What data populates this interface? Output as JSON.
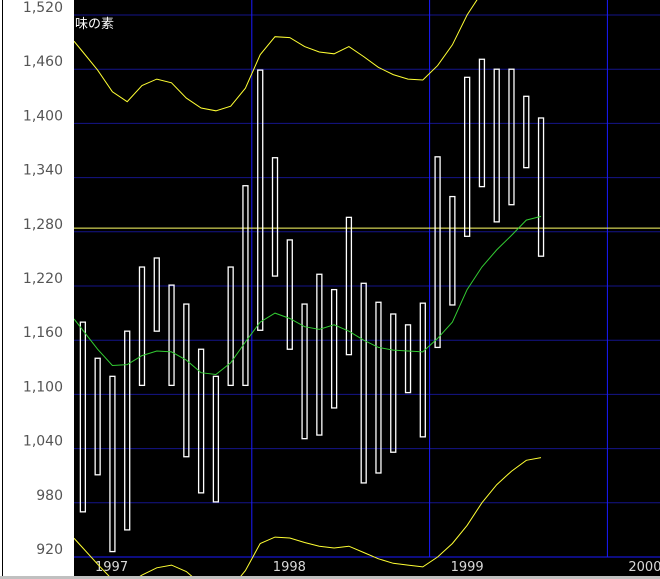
{
  "chart_data": {
    "type": "bar",
    "title": "味の素",
    "ylim": [
      900,
      1534
    ],
    "yticks": [
      "1,520",
      "1,460",
      "1,400",
      "1,340",
      "1,280",
      "1,220",
      "1,160",
      "1,100",
      "1,040",
      "980",
      "920"
    ],
    "ytick_values": [
      1520,
      1460,
      1400,
      1340,
      1280,
      1220,
      1160,
      1100,
      1040,
      980,
      920
    ],
    "xticks": [
      "1997",
      "1998",
      "1999",
      "2000"
    ],
    "grid": true,
    "reference_line": 1284,
    "colors": {
      "background": "#000000",
      "bars": "#ffffff",
      "moving_average": "#33cc33",
      "bands": "#ffff33",
      "price_line": "#ffff66",
      "grid": "#14148a",
      "year_grid": "#1a1aff"
    },
    "months": [
      "1997-01",
      "1997-02",
      "1997-03",
      "1997-04",
      "1997-05",
      "1997-06",
      "1997-07",
      "1997-08",
      "1997-09",
      "1997-10",
      "1997-11",
      "1997-12",
      "1998-01",
      "1998-02",
      "1998-03",
      "1998-04",
      "1998-05",
      "1998-06",
      "1998-07",
      "1998-08",
      "1998-09",
      "1998-10",
      "1998-11",
      "1998-12",
      "1999-01",
      "1999-02",
      "1999-03",
      "1999-04",
      "1999-05",
      "1999-06",
      "1999-07",
      "1999-08"
    ],
    "high": [
      1180,
      1140,
      1120,
      1170,
      1241,
      1251,
      1221,
      1200,
      1150,
      1120,
      1241,
      1331,
      1459,
      1362,
      1271,
      1200,
      1233,
      1216,
      1296,
      1223,
      1202,
      1189,
      1177,
      1201,
      1363,
      1319,
      1451,
      1471,
      1460,
      1460,
      1430,
      1406
    ],
    "low": [
      970,
      1011,
      926,
      950,
      1110,
      1170,
      1110,
      1031,
      991,
      981,
      1110,
      1110,
      1171,
      1231,
      1150,
      1051,
      1055,
      1085,
      1144,
      1002,
      1013,
      1036,
      1102,
      1053,
      1152,
      1199,
      1275,
      1330,
      1291,
      1310,
      1351,
      1253
    ],
    "moving_average": [
      1171,
      1150,
      1132,
      1133,
      1143,
      1148,
      1147,
      1138,
      1124,
      1122,
      1135,
      1158,
      1180,
      1190,
      1184,
      1175,
      1172,
      1177,
      1170,
      1160,
      1152,
      1149,
      1148,
      1147,
      1162,
      1180,
      1216,
      1241,
      1260,
      1276,
      1293,
      1297
    ],
    "upper_band": [
      1479,
      1459,
      1435,
      1424,
      1442,
      1449,
      1445,
      1428,
      1417,
      1414,
      1419,
      1439,
      1476,
      1496,
      1495,
      1485,
      1479,
      1477,
      1485,
      1474,
      1462,
      1454,
      1449,
      1448,
      1464,
      1487,
      1520,
      1545,
      1565,
      1580,
      1590,
      1595
    ],
    "lower_band": [
      930,
      912,
      895,
      890,
      900,
      908,
      911,
      904,
      890,
      880,
      885,
      905,
      935,
      942,
      941,
      936,
      932,
      930,
      932,
      925,
      918,
      913,
      911,
      909,
      920,
      935,
      955,
      980,
      1000,
      1015,
      1027,
      1030
    ]
  }
}
